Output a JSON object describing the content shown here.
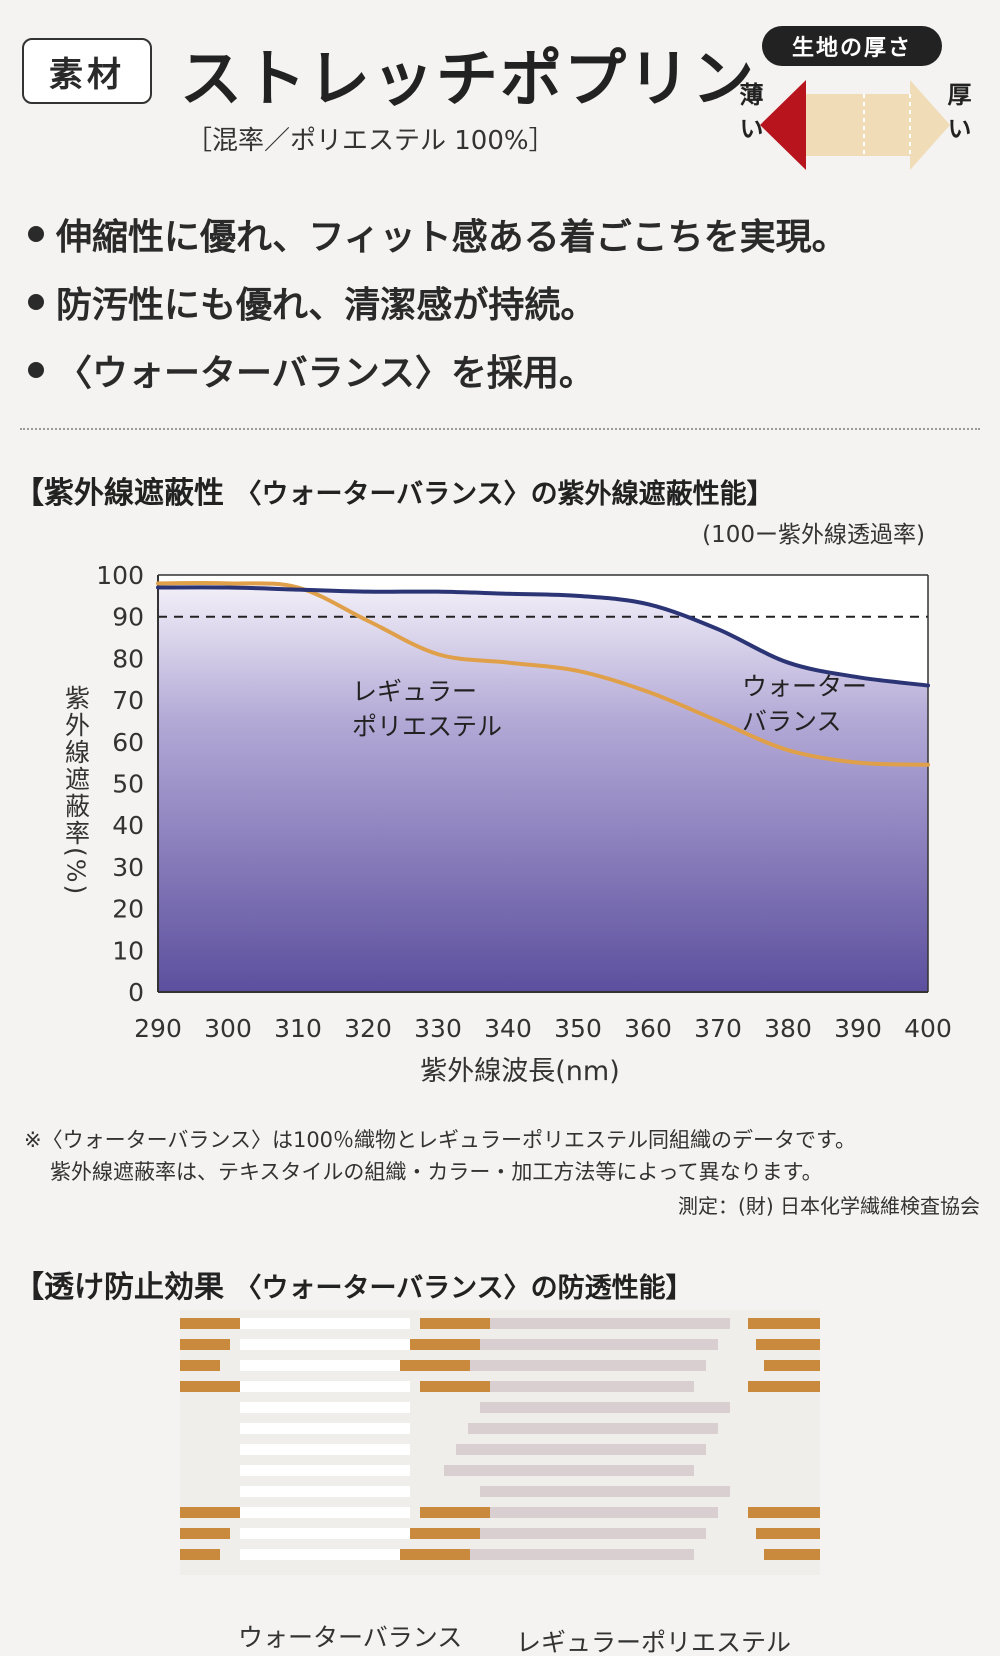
{
  "header": {
    "tag": "素材",
    "title": "ストレッチポプリン",
    "blend": "［混率／ポリエステル 100%］",
    "thickness_badge": "生地の厚さ",
    "thin_label": "薄い",
    "thick_label": "厚い"
  },
  "bullets": [
    "伸縮性に優れ、フィット感ある着ごこちを実現。",
    "防汚性にも優れ、清潔感が持続。",
    "〈ウォーターバランス〉を採用。"
  ],
  "uv_section": {
    "title": "【紫外線遮蔽性",
    "subtitle": "〈ウォーターバランス〉の紫外線遮蔽性能】"
  },
  "chart_data": {
    "type": "line",
    "title": "",
    "xlabel": "紫外線波長(nm)",
    "ylabel": "紫外線遮蔽率(%)",
    "y_note": "(100ー紫外線透過率)",
    "x": [
      290,
      300,
      310,
      320,
      330,
      340,
      350,
      360,
      370,
      380,
      390,
      400
    ],
    "xlim": [
      290,
      400
    ],
    "ylim": [
      0,
      100
    ],
    "yticks": [
      0,
      10,
      20,
      30,
      40,
      50,
      60,
      70,
      80,
      90,
      100
    ],
    "reference_line": 90,
    "series": [
      {
        "name": "ウォーターバランス",
        "color": "#2b3475",
        "values": [
          97,
          97,
          96.5,
          96,
          96,
          95.5,
          95,
          93,
          87,
          79,
          75.5,
          73.5
        ]
      },
      {
        "name": "レギュラーポリエステル",
        "color": "#e0a04a",
        "values": [
          98,
          98,
          97,
          89,
          81,
          79,
          77,
          72,
          65,
          58,
          55,
          54.5
        ]
      }
    ],
    "fill_gradient": [
      "#f7f5fb",
      "#8a7dbd",
      "#5c4f9e"
    ]
  },
  "notes": [
    "※〈ウォーターバランス〉は100％織物とレギュラーポリエステル同組織のデータです。",
    "紫外線遮蔽率は、テキスタイルの組織・カラー・加工方法等によって異なります。"
  ],
  "source": "測定：(財) 日本化学繊維検査協会",
  "seethrough_section": {
    "title": "【透け防止効果",
    "subtitle": "〈ウォーターバランス〉の防透性能】"
  },
  "fabric_labels": {
    "left": "ウォーターバランス",
    "right": "レギュラーポリエステル"
  },
  "colors": {
    "accent_red": "#b8141e",
    "arrow_cream": "#f0dcb6",
    "stripe_brown": "#c98a3e"
  }
}
